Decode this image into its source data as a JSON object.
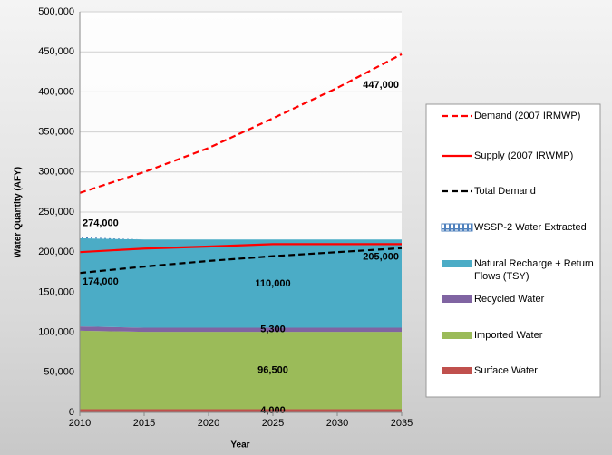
{
  "chart_data": {
    "type": "area",
    "x": [
      2010,
      2015,
      2020,
      2025,
      2030,
      2035
    ],
    "xlabel": "Year",
    "ylabel": "Water Quantity (AFY)",
    "xlim": [
      2010,
      2035
    ],
    "xticks": [
      2010,
      2015,
      2020,
      2025,
      2030,
      2035
    ],
    "ylim": [
      0,
      500000
    ],
    "yticks": [
      0,
      {
        "value": 50000,
        "label": "50,000"
      },
      {
        "value": 100000,
        "label": "100,000"
      },
      {
        "value": 150000,
        "label": "150,000"
      },
      {
        "value": 200000,
        "label": "200,000"
      },
      {
        "value": 250000,
        "label": "250,000"
      },
      {
        "value": 300000,
        "label": "300,000"
      },
      {
        "value": 350000,
        "label": "350,000"
      },
      {
        "value": 400000,
        "label": "400,000"
      },
      {
        "value": 450000,
        "label": "450,000"
      },
      {
        "value": 500000,
        "label": "500,000"
      }
    ],
    "grid": true,
    "legend": "right",
    "series": [
      {
        "name": "Surface Water",
        "kind": "area",
        "color": "#c0504d",
        "values": [
          4000,
          4000,
          4000,
          4000,
          4000,
          4000
        ],
        "value_labels": [
          null,
          null,
          null,
          "4,000",
          null,
          null
        ]
      },
      {
        "name": "Imported Water",
        "kind": "area",
        "color": "#9bbb59",
        "values": [
          98000,
          96500,
          96500,
          96500,
          96500,
          96500
        ],
        "value_labels": [
          null,
          null,
          null,
          "96,500",
          null,
          null
        ]
      },
      {
        "name": "Recycled Water",
        "kind": "area",
        "color": "#8064a2",
        "values": [
          5300,
          5300,
          5300,
          5300,
          5300,
          5300
        ],
        "value_labels": [
          null,
          null,
          null,
          "5,300",
          null,
          null
        ]
      },
      {
        "name": "Natural Recharge + Return Flows (TSY)",
        "kind": "area",
        "color": "#4bacc6",
        "values": [
          110000,
          110000,
          110000,
          110000,
          110000,
          110000
        ],
        "value_labels": [
          null,
          null,
          null,
          "110,000",
          null,
          null
        ]
      },
      {
        "name": "WSSP-2 Water Extracted",
        "kind": "area",
        "color": "#4f81bd",
        "pattern": "hatch",
        "values": [
          1500,
          0,
          0,
          0,
          0,
          0
        ]
      },
      {
        "name": "Total Demand",
        "kind": "line",
        "dash": true,
        "color": "#000000",
        "values": [
          174000,
          182000,
          189000,
          195000,
          200000,
          205000
        ],
        "value_labels": [
          "174,000",
          null,
          null,
          null,
          null,
          "205,000"
        ]
      },
      {
        "name": "Supply (2007 IRWMP)",
        "kind": "line",
        "dash": false,
        "color": "#ff0000",
        "values": [
          200000,
          204500,
          207000,
          210000,
          210000,
          210000
        ]
      },
      {
        "name": "Demand (2007 IRMWP)",
        "kind": "line",
        "dash": true,
        "color": "#ff0000",
        "values": [
          274000,
          300000,
          330000,
          367000,
          405000,
          447000
        ],
        "value_labels": [
          "274,000",
          null,
          null,
          null,
          null,
          "447,000"
        ]
      }
    ]
  }
}
